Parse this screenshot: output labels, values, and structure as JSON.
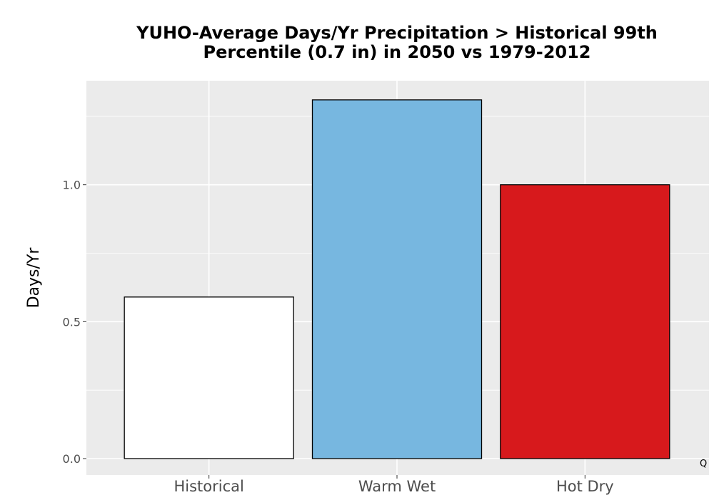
{
  "chart_data": {
    "type": "bar",
    "title_lines": [
      "YUHO-Average Days/Yr Precipitation > Historical 99th",
      "Percentile (0.7 in) in 2050 vs 1979-2012"
    ],
    "xlabel": "",
    "ylabel": "Days/Yr",
    "categories": [
      "Historical",
      "Warm Wet",
      "Hot Dry"
    ],
    "values": [
      0.59,
      1.31,
      1.0
    ],
    "colors": [
      "#ffffff",
      "#77b7e0",
      "#d7191c"
    ],
    "ylim": [
      -0.06,
      1.38
    ],
    "yticks": [
      0.0,
      0.5,
      1.0
    ],
    "ytick_labels": [
      "0.0",
      "0.5",
      "1.0"
    ],
    "grid": true,
    "corner_note": "Q"
  }
}
